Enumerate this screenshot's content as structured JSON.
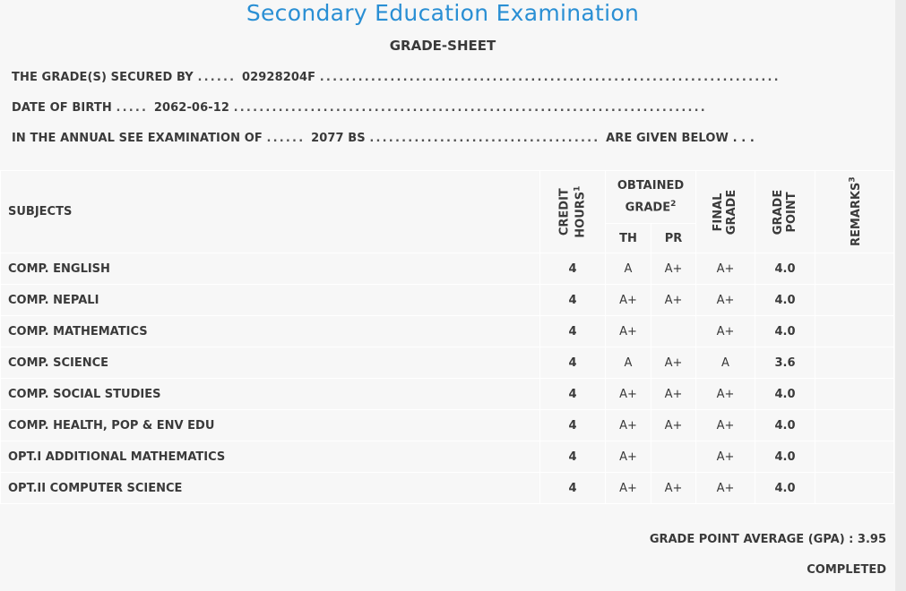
{
  "header": {
    "title": "Secondary Education Examination",
    "subtitle": "GRADE-SHEET"
  },
  "info": {
    "secured_by_label": "THE GRADE(S) SECURED BY",
    "secured_by_value": "02928204F",
    "dob_label": "DATE OF BIRTH",
    "dob_value": "2062-06-12",
    "exam_label": "IN THE ANNUAL SEE EXAMINATION OF",
    "exam_value": "2077 BS",
    "exam_suffix": "ARE GIVEN BELOW . . ."
  },
  "table": {
    "headers": {
      "subjects": "SUBJECTS",
      "credit_hours_line1": "CREDIT",
      "credit_hours_line2": "HOURS",
      "credit_hours_sup": "1",
      "obtained_grade_line1": "OBTAINED",
      "obtained_grade_line2": "GRADE",
      "obtained_grade_sup": "2",
      "th": "TH",
      "pr": "PR",
      "final_grade_line1": "FINAL",
      "final_grade_line2": "GRADE",
      "grade_point_line1": "GRADE",
      "grade_point_line2": "POINT",
      "remarks": "REMARKS",
      "remarks_sup": "3"
    },
    "rows": [
      {
        "subject": "COMP. ENGLISH",
        "credit": "4",
        "th": "A",
        "pr": "A+",
        "final": "A+",
        "point": "4.0",
        "remarks": ""
      },
      {
        "subject": "COMP. NEPALI",
        "credit": "4",
        "th": "A+",
        "pr": "A+",
        "final": "A+",
        "point": "4.0",
        "remarks": ""
      },
      {
        "subject": "COMP. MATHEMATICS",
        "credit": "4",
        "th": "A+",
        "pr": "",
        "final": "A+",
        "point": "4.0",
        "remarks": ""
      },
      {
        "subject": "COMP. SCIENCE",
        "credit": "4",
        "th": "A",
        "pr": "A+",
        "final": "A",
        "point": "3.6",
        "remarks": ""
      },
      {
        "subject": "COMP. SOCIAL STUDIES",
        "credit": "4",
        "th": "A+",
        "pr": "A+",
        "final": "A+",
        "point": "4.0",
        "remarks": ""
      },
      {
        "subject": "COMP. HEALTH, POP & ENV EDU",
        "credit": "4",
        "th": "A+",
        "pr": "A+",
        "final": "A+",
        "point": "4.0",
        "remarks": ""
      },
      {
        "subject": "OPT.I ADDITIONAL MATHEMATICS",
        "credit": "4",
        "th": "A+",
        "pr": "",
        "final": "A+",
        "point": "4.0",
        "remarks": ""
      },
      {
        "subject": "OPT.II COMPUTER SCIENCE",
        "credit": "4",
        "th": "A+",
        "pr": "A+",
        "final": "A+",
        "point": "4.0",
        "remarks": ""
      }
    ]
  },
  "summary": {
    "gpa_label": "GRADE POINT AVERAGE (GPA) :",
    "gpa_value": "3.95",
    "status": "COMPLETED"
  }
}
